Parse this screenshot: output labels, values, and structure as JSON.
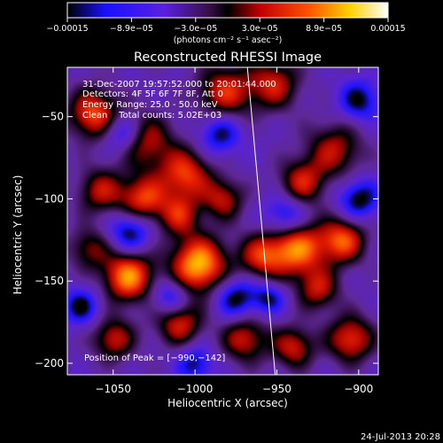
{
  "chart_data": {
    "type": "heatmap",
    "title": "Reconstructed RHESSI Image",
    "xlabel": "Heliocentric X (arcsec)",
    "ylabel": "Heliocentric Y (arcsec)",
    "xlim": [
      -1078,
      -888
    ],
    "ylim": [
      -207,
      -20
    ],
    "xticks": [
      -1050,
      -1000,
      -950,
      -900
    ],
    "xtick_labels": [
      "−1050",
      "−1000",
      "−950",
      "−900"
    ],
    "yticks": [
      -50,
      -100,
      -150,
      -200
    ],
    "ytick_labels": [
      "−50",
      "−100",
      "−150",
      "−200"
    ],
    "colorbar": {
      "range": [
        -0.00015,
        0.00015
      ],
      "tick_labels": [
        "−0.00015",
        "−8.9e−05",
        "−3.0e−05",
        "3.0e−05",
        "8.9e−05",
        "0.00015"
      ],
      "unit_label": "(photons cm⁻² s⁻¹ asec⁻²)",
      "colormap": [
        "#000000",
        "#1a10ff",
        "#7a22c8",
        "#000000",
        "#ff1a00",
        "#ffffff"
      ]
    },
    "annotations": [
      "31-Dec-2007 19:57:52.000 to 20:01:44.000",
      "Detectors: 4F 5F 6F 7F 8F, Att 0",
      "Energy Range: 25.0 - 50.0 keV",
      "Clean    Total counts: 5.02E+03"
    ],
    "peak_label": "Position of Peak = [−990,−142]",
    "peak": {
      "x": -990,
      "y": -142
    },
    "limb_line": [
      {
        "x": -968,
        "y": -20
      },
      {
        "x": -951,
        "y": -207
      }
    ],
    "blobs": [
      {
        "x": -1062,
        "y": -48,
        "s": 11,
        "a": 0.75
      },
      {
        "x": -1058,
        "y": -95,
        "s": 10,
        "a": 0.55
      },
      {
        "x": -1030,
        "y": -65,
        "s": 12,
        "a": 0.55
      },
      {
        "x": -1032,
        "y": -100,
        "s": 10,
        "a": 0.7
      },
      {
        "x": -1006,
        "y": -85,
        "s": 11,
        "a": 0.7
      },
      {
        "x": -982,
        "y": -35,
        "s": 12,
        "a": 0.65
      },
      {
        "x": -952,
        "y": -30,
        "s": 11,
        "a": 0.6
      },
      {
        "x": -915,
        "y": -70,
        "s": 12,
        "a": 0.55
      },
      {
        "x": -935,
        "y": -90,
        "s": 10,
        "a": 0.6
      },
      {
        "x": -1041,
        "y": -147,
        "s": 11,
        "a": 0.9
      },
      {
        "x": -998,
        "y": -140,
        "s": 12,
        "a": 1.0
      },
      {
        "x": -1010,
        "y": -110,
        "s": 9,
        "a": 0.55
      },
      {
        "x": -983,
        "y": -100,
        "s": 9,
        "a": 0.55
      },
      {
        "x": -960,
        "y": -135,
        "s": 10,
        "a": 0.6
      },
      {
        "x": -938,
        "y": -130,
        "s": 12,
        "a": 0.85
      },
      {
        "x": -910,
        "y": -125,
        "s": 10,
        "a": 0.75
      },
      {
        "x": -925,
        "y": -155,
        "s": 9,
        "a": 0.55
      },
      {
        "x": -1050,
        "y": -185,
        "s": 9,
        "a": 0.6
      },
      {
        "x": -1010,
        "y": -175,
        "s": 10,
        "a": 0.65
      },
      {
        "x": -970,
        "y": -185,
        "s": 10,
        "a": 0.6
      },
      {
        "x": -940,
        "y": -190,
        "s": 9,
        "a": 0.6
      },
      {
        "x": -905,
        "y": -185,
        "s": 10,
        "a": 0.7
      },
      {
        "x": -1065,
        "y": -130,
        "s": 9,
        "a": 0.45
      },
      {
        "x": -1045,
        "y": -60,
        "s": 8,
        "a": -0.5
      },
      {
        "x": -1040,
        "y": -120,
        "s": 9,
        "a": -0.55
      },
      {
        "x": -1015,
        "y": -160,
        "s": 8,
        "a": -0.5
      },
      {
        "x": -1070,
        "y": -165,
        "s": 8,
        "a": -0.5
      },
      {
        "x": -985,
        "y": -60,
        "s": 9,
        "a": -0.5
      },
      {
        "x": -975,
        "y": -160,
        "s": 9,
        "a": -0.55
      },
      {
        "x": -945,
        "y": -110,
        "s": 9,
        "a": -0.5
      },
      {
        "x": -900,
        "y": -100,
        "s": 9,
        "a": -0.55
      },
      {
        "x": -900,
        "y": -40,
        "s": 9,
        "a": -0.5
      },
      {
        "x": -1000,
        "y": -200,
        "s": 8,
        "a": -0.45
      },
      {
        "x": -955,
        "y": -160,
        "s": 7,
        "a": -0.45
      }
    ]
  },
  "footer": {
    "timestamp": "24-Jul-2013 20:28"
  }
}
